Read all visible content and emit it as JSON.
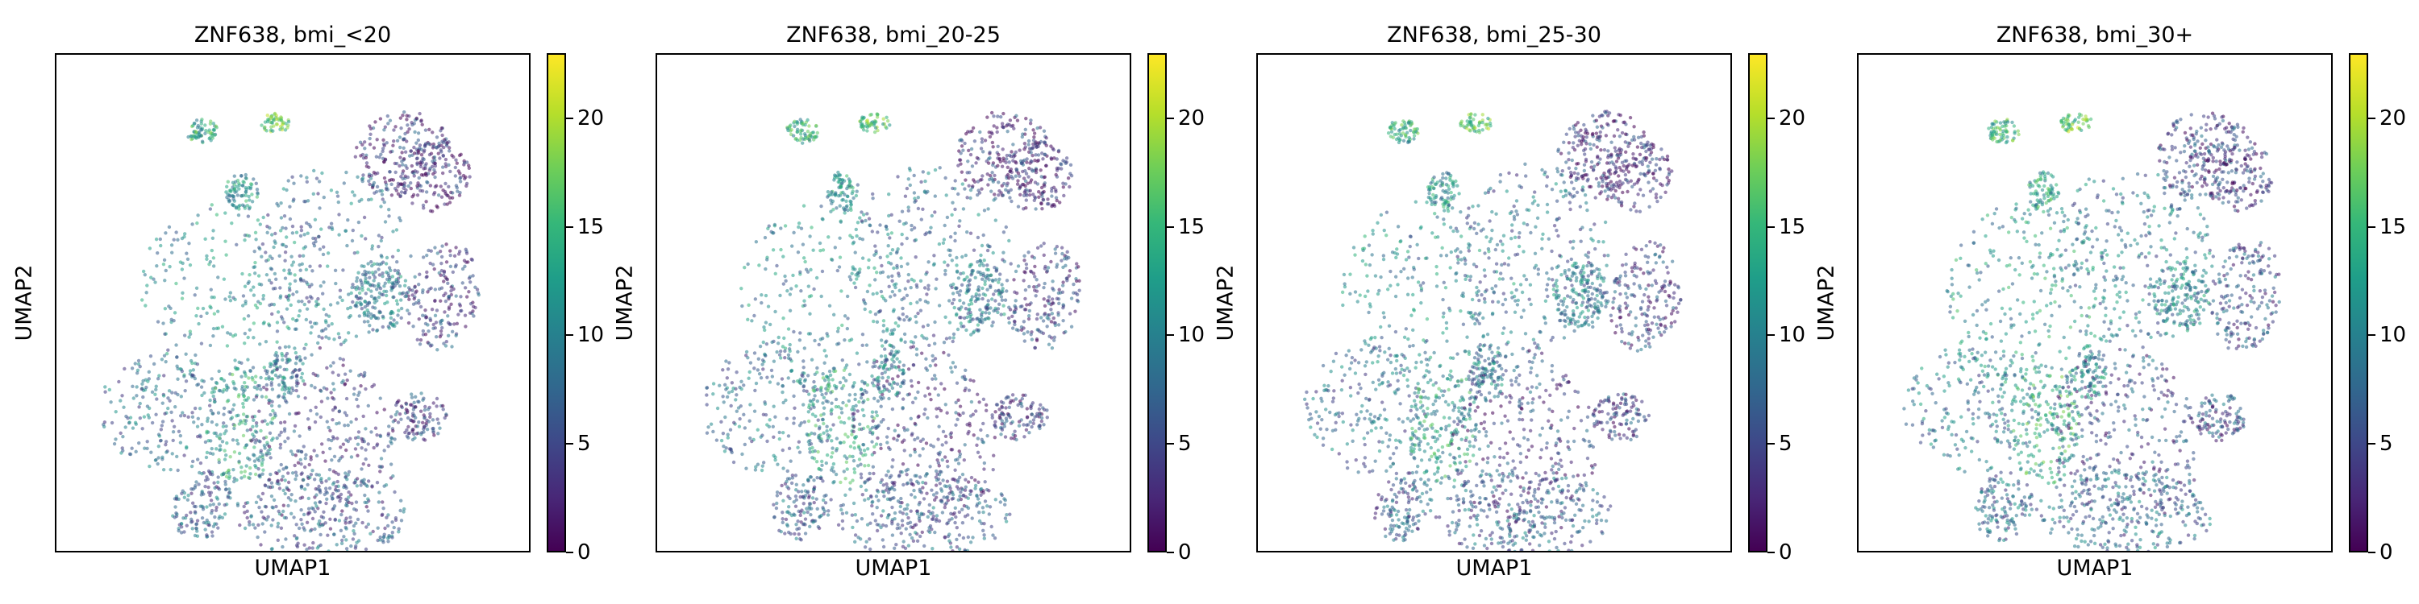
{
  "figure": {
    "colorbar_ticks": [
      "0",
      "5",
      "10",
      "15",
      "20"
    ],
    "colormap": [
      "#440154",
      "#482878",
      "#3e4989",
      "#31688e",
      "#26828e",
      "#1f9e89",
      "#35b779",
      "#6ece58",
      "#b5de2b",
      "#fde725"
    ]
  },
  "chart_data": [
    {
      "type": "scatter",
      "title": "ZNF638, bmi_<20",
      "xlabel": "UMAP1",
      "ylabel": "UMAP2",
      "colorbar": {
        "min": 0,
        "max": 23,
        "ticks": [
          0,
          5,
          10,
          15,
          20
        ]
      },
      "grid": false,
      "legend": "colorbar-right"
    },
    {
      "type": "scatter",
      "title": "ZNF638, bmi_20-25",
      "xlabel": "UMAP1",
      "ylabel": "UMAP2",
      "colorbar": {
        "min": 0,
        "max": 23,
        "ticks": [
          0,
          5,
          10,
          15,
          20
        ]
      },
      "grid": false,
      "legend": "colorbar-right"
    },
    {
      "type": "scatter",
      "title": "ZNF638, bmi_25-30",
      "xlabel": "UMAP1",
      "ylabel": "UMAP2",
      "colorbar": {
        "min": 0,
        "max": 23,
        "ticks": [
          0,
          5,
          10,
          15,
          20
        ]
      },
      "grid": false,
      "legend": "colorbar-right"
    },
    {
      "type": "scatter",
      "title": "ZNF638, bmi_30+",
      "xlabel": "UMAP1",
      "ylabel": "UMAP2",
      "colorbar": {
        "min": 0,
        "max": 23,
        "ticks": [
          0,
          5,
          10,
          15,
          20
        ]
      },
      "grid": false,
      "legend": "colorbar-right"
    }
  ]
}
